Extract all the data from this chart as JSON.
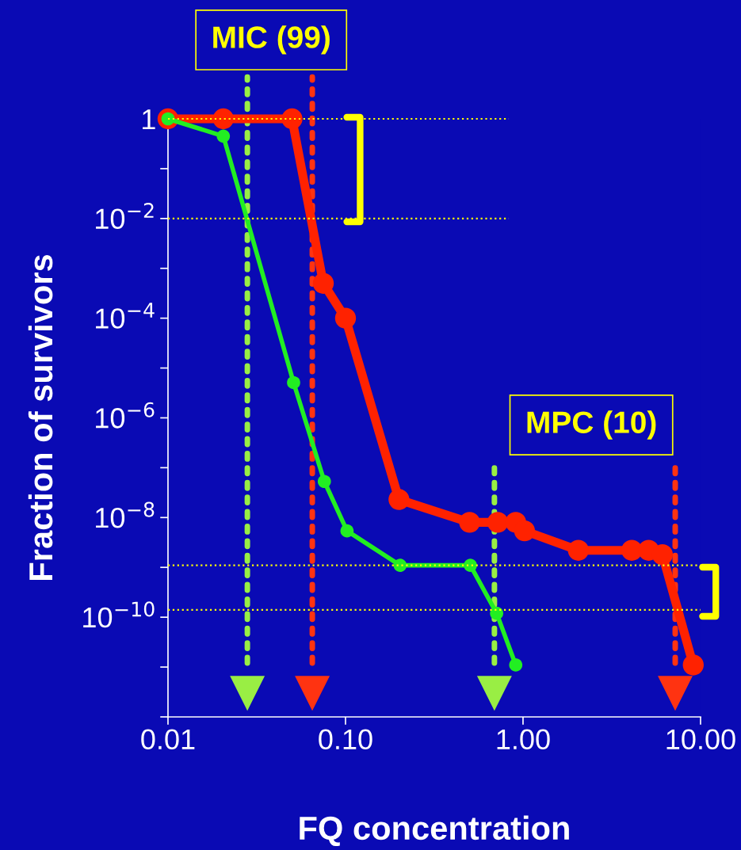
{
  "chart_data": {
    "type": "line",
    "xlabel": "FQ concentration",
    "ylabel": "Fraction of survivors",
    "log": "xy",
    "grid": false,
    "legend": false,
    "marker": "circle",
    "line_style": "solid",
    "xlim": [
      0.01,
      10
    ],
    "xticks": [
      {
        "value": 0.01,
        "label": "0.01"
      },
      {
        "value": 0.1,
        "label": "0.10"
      },
      {
        "value": 1,
        "label": "1.00"
      },
      {
        "value": 10,
        "label": "10.00"
      }
    ],
    "ylim": [
      1e-12,
      1
    ],
    "yticks": [
      {
        "value": 1e-12,
        "label": null
      },
      {
        "value": 1e-11,
        "label": null
      },
      {
        "value": 1e-10,
        "label": "10$^{−10}$"
      },
      {
        "value": 1e-09,
        "label": null
      },
      {
        "value": 1e-08,
        "label": "10$^{−8}$"
      },
      {
        "value": 1e-07,
        "label": null
      },
      {
        "value": 1e-06,
        "label": "10$^{−6}$"
      },
      {
        "value": 1e-05,
        "label": null
      },
      {
        "value": 0.0001,
        "label": "10$^{−4}$"
      },
      {
        "value": 0.001,
        "label": null
      },
      {
        "value": 0.01,
        "label": "10$^{−2}$"
      },
      {
        "value": 0.1,
        "label": null
      },
      {
        "value": 1,
        "label": "1"
      }
    ],
    "series": [
      {
        "color": "#ff2200",
        "x": [
          0.01,
          0.0205,
          0.05,
          0.075,
          0.1,
          0.2,
          0.5,
          0.72,
          0.91,
          1.02,
          2.05,
          4.1,
          5.1,
          6.1,
          9.1
        ],
        "values": [
          1,
          1,
          1,
          0.0005,
          0.0001,
          2.3e-08,
          8e-09,
          8e-09,
          8e-09,
          5.4e-09,
          2.2e-09,
          2.2e-09,
          2.2e-09,
          1.8e-09,
          1.1e-11
        ]
      },
      {
        "color": "#22ee22",
        "x": [
          0.01,
          0.0205,
          0.051,
          0.076,
          0.102,
          0.203,
          0.505,
          0.71,
          0.91
        ],
        "values": [
          1,
          0.45,
          5.1e-06,
          5.3e-08,
          5.4e-09,
          1.1e-09,
          1.1e-09,
          1.2e-10,
          1.1e-11
        ]
      }
    ],
    "ref_lines": [
      {
        "axis": "x",
        "value": 0.028,
        "color": "#99ee44",
        "line_style": "dotted"
      },
      {
        "axis": "x",
        "value": 0.065,
        "color": "#ff3311",
        "line_style": "dotted"
      },
      {
        "axis": "x",
        "value": 0.69,
        "color": "#99ee44",
        "line_style": "dotted"
      },
      {
        "axis": "x",
        "value": 7.2,
        "color": "#ff3311",
        "line_style": "dotted"
      },
      {
        "axis": "y",
        "value": 1,
        "color": "#ffff00",
        "line_style": "dotted"
      },
      {
        "axis": "y",
        "value": 0.01,
        "color": "#ffff00",
        "line_style": "dotted"
      },
      {
        "axis": "y",
        "value": 1.1e-09,
        "color": "#ffff00",
        "line_style": "dotted"
      },
      {
        "axis": "y",
        "value": 1.4e-10,
        "color": "#ffff00",
        "line_style": "dotted"
      }
    ],
    "annotations": [
      "MIC (99)",
      "MPC (10)"
    ]
  }
}
